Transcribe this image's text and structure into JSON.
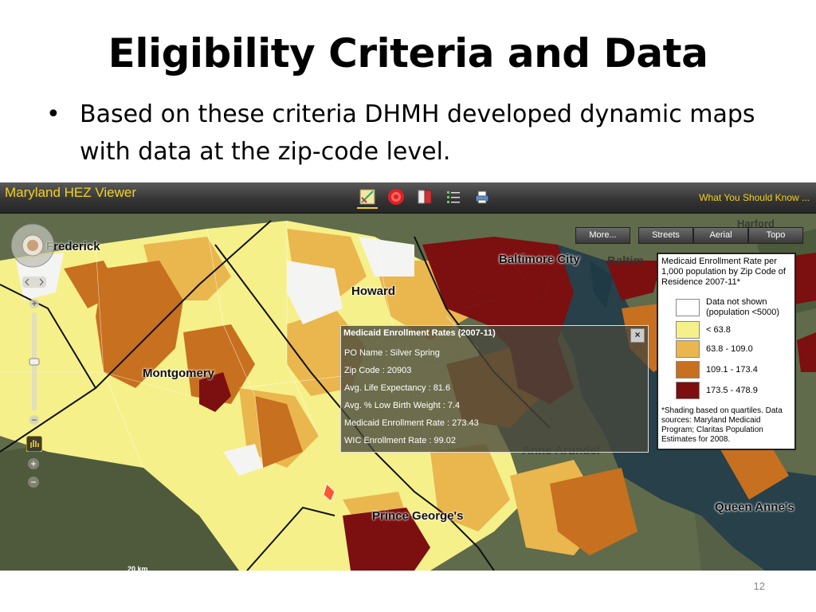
{
  "slide": {
    "title": "Eligibility Criteria and Data",
    "bullet": "Based on these criteria DHMH developed dynamic maps with data at the zip-code level.",
    "bullet_symbol": "•",
    "page_number": "12"
  },
  "app": {
    "title": "Maryland HEZ Viewer",
    "what_link": "What You Should Know ...",
    "toolbar": [
      "legend-icon",
      "target-icon",
      "book-icon",
      "list-icon",
      "print-icon"
    ]
  },
  "map_types": [
    "More...",
    "Streets",
    "Aerial",
    "Topo"
  ],
  "places": {
    "frederick": "Frederick",
    "howard": "Howard",
    "montgomery": "Montgomery",
    "baltimore_city": "Baltimore City",
    "baltimore": "Baltim",
    "anne_arundel": "Anne Arundel",
    "prince_georges": "Prince George's",
    "queen_annes": "Queen Anne's",
    "harford": "Harford"
  },
  "legend": {
    "title": "Medicaid Enrollment Rate per 1,000 population by Zip Code of Residence 2007-11*",
    "items": [
      {
        "label": "Data not shown (population <5000)",
        "color": "#ffffff"
      },
      {
        "label": "< 63.8",
        "color": "#f5f08a"
      },
      {
        "label": "63.8 - 109.0",
        "color": "#eab64e"
      },
      {
        "label": "109.1 - 173.4",
        "color": "#c7701f"
      },
      {
        "label": "173.5 - 478.9",
        "color": "#7c0f0f"
      }
    ],
    "note": "*Shading based on quartiles. Data sources: Maryland Medicaid Program; Claritas Population Estimates for 2008."
  },
  "popup": {
    "title": "Medicaid Enrollment Rates (2007-11)",
    "close": "×",
    "rows": [
      "PO Name :  Silver Spring",
      "Zip Code :  20903",
      "Avg. Life Expectancy :  81.6",
      "Avg. % Low Birth Weight :  7.4",
      "Medicaid Enrollment Rate :  273.43",
      "WIC Enrollment Rate :  99.02"
    ]
  },
  "scale_label": "20 km",
  "colors": {
    "accent": "#f2d21c",
    "q1": "#f5f08a",
    "q2": "#eab64e",
    "q3": "#c7701f",
    "q4": "#7c0f0f",
    "no_data": "#ffffff"
  }
}
